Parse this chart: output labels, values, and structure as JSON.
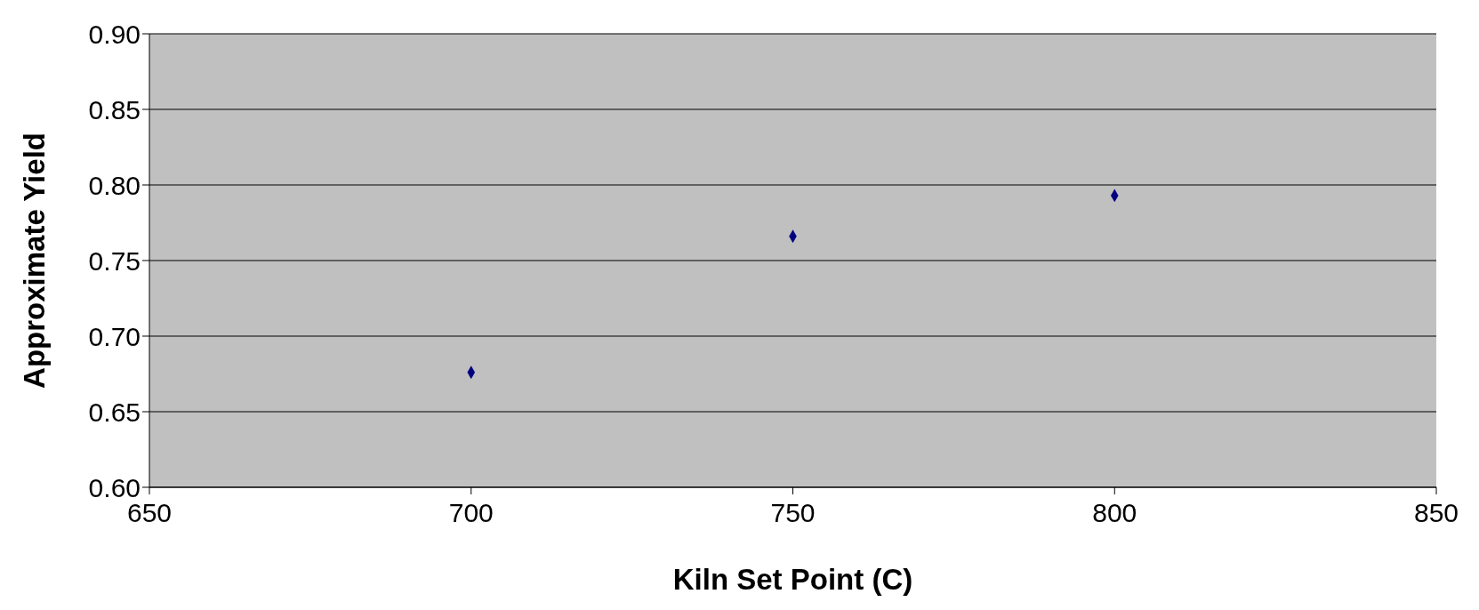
{
  "chart_data": {
    "type": "scatter",
    "xlabel": "Kiln Set Point (C)",
    "ylabel": "Approximate Yield",
    "x": [
      700,
      750,
      800
    ],
    "series": [
      {
        "color": "#000080",
        "values": [
          0.676,
          0.766,
          0.793
        ]
      }
    ],
    "xlim": [
      650,
      850
    ],
    "xticks": [
      650,
      700,
      750,
      800,
      850
    ],
    "ylim": [
      0.6,
      0.9
    ],
    "yticks": [
      {
        "value": 0.6,
        "label": "0.60"
      },
      {
        "value": 0.65,
        "label": "0.65"
      },
      {
        "value": 0.7,
        "label": "0.70"
      },
      {
        "value": 0.75,
        "label": "0.75"
      },
      {
        "value": 0.8,
        "label": "0.80"
      },
      {
        "value": 0.85,
        "label": "0.85"
      },
      {
        "value": 0.9,
        "label": "0.90"
      }
    ],
    "grid": "y",
    "marker": "diamond"
  }
}
